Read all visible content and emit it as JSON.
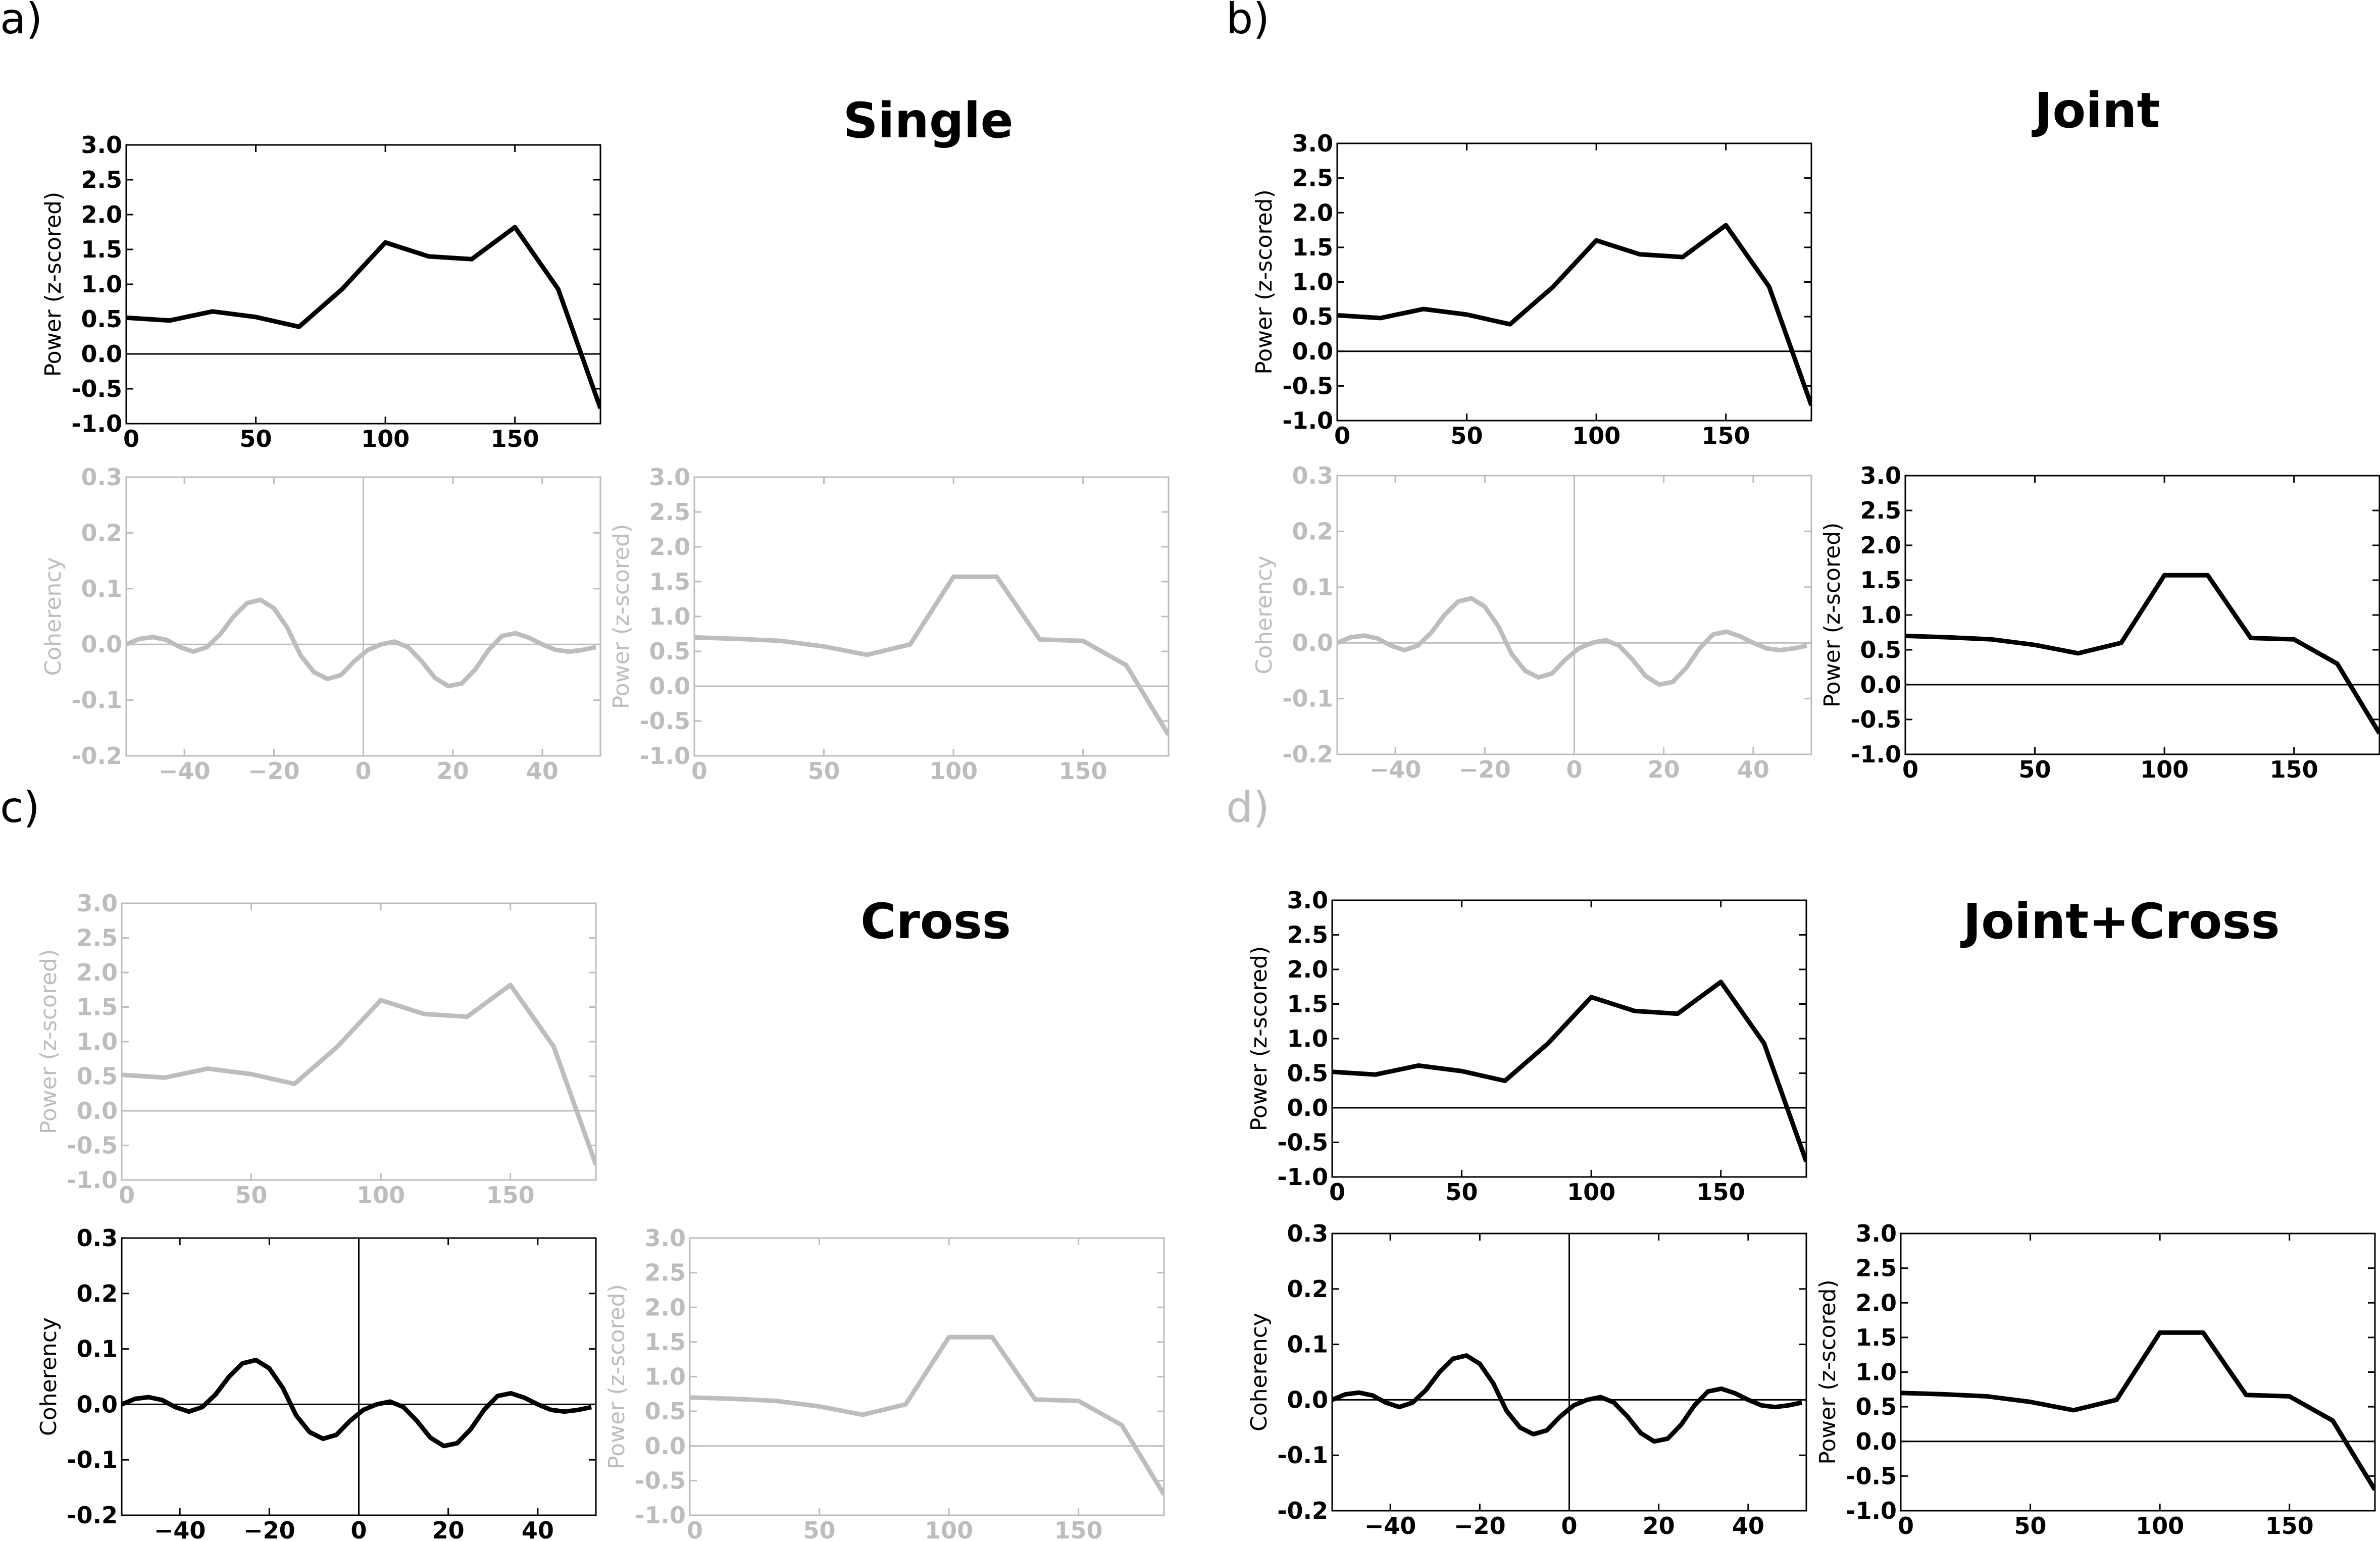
{
  "colors": {
    "dark": "#000000",
    "faded": "#bdbdbd"
  },
  "panels": [
    {
      "letter": "a)",
      "title": "Single",
      "letter_faded": false
    },
    {
      "letter": "b)",
      "title": "Joint",
      "letter_faded": false
    },
    {
      "letter": "c)",
      "title": "Cross",
      "letter_faded": false
    },
    {
      "letter": "d)",
      "title": "Joint+Cross",
      "letter_faded": true
    }
  ],
  "chart_data": [
    {
      "id": "a-top",
      "panel": "a)",
      "type": "line",
      "ylabel": "Power (z-scored)",
      "xlim": [
        0,
        183
      ],
      "ylim": [
        -1.0,
        3.0
      ],
      "xticks": [
        0,
        50,
        100,
        150
      ],
      "yticks": [
        -1.0,
        -0.5,
        0.0,
        0.5,
        1.0,
        1.5,
        2.0,
        2.5,
        3.0
      ],
      "faded": false,
      "zero_vline": false,
      "x": [
        0,
        16.7,
        33.3,
        50,
        66.7,
        83.3,
        100,
        116.7,
        133.3,
        150,
        166.7,
        183
      ],
      "y": [
        0.52,
        0.48,
        0.61,
        0.53,
        0.39,
        0.93,
        1.6,
        1.4,
        1.36,
        1.82,
        0.93,
        -0.78
      ]
    },
    {
      "id": "a-coh",
      "panel": "a)",
      "type": "line",
      "ylabel": "Coherency",
      "xlim": [
        -53,
        53
      ],
      "ylim": [
        -0.2,
        0.3
      ],
      "xticks": [
        -40,
        -20,
        0,
        20,
        40
      ],
      "yticks": [
        -0.2,
        -0.1,
        0.0,
        0.1,
        0.2,
        0.3
      ],
      "faded": true,
      "zero_vline": true,
      "x": [
        -53,
        -50,
        -47,
        -44,
        -41,
        -38,
        -35,
        -32,
        -29,
        -26,
        -23,
        -20,
        -17,
        -14,
        -11,
        -8,
        -5,
        -2,
        1,
        4,
        7,
        10,
        13,
        16,
        19,
        22,
        25,
        28,
        31,
        34,
        37,
        40,
        43,
        46,
        49,
        52
      ],
      "y": [
        0.0,
        0.01,
        0.013,
        0.008,
        -0.005,
        -0.013,
        -0.005,
        0.018,
        0.05,
        0.074,
        0.08,
        0.065,
        0.03,
        -0.02,
        -0.05,
        -0.062,
        -0.055,
        -0.03,
        -0.01,
        0.0,
        0.005,
        -0.005,
        -0.03,
        -0.06,
        -0.075,
        -0.07,
        -0.045,
        -0.01,
        0.015,
        0.02,
        0.012,
        0.0,
        -0.01,
        -0.013,
        -0.01,
        -0.005
      ]
    },
    {
      "id": "a-right",
      "panel": "a)",
      "type": "line",
      "ylabel": "Power (z-scored)",
      "xlim": [
        0,
        183
      ],
      "ylim": [
        -1.0,
        3.0
      ],
      "xticks": [
        0,
        50,
        100,
        150
      ],
      "yticks": [
        -1.0,
        -0.5,
        0.0,
        0.5,
        1.0,
        1.5,
        2.0,
        2.5,
        3.0
      ],
      "faded": true,
      "zero_vline": false,
      "x": [
        0,
        16.7,
        33.3,
        50,
        66.7,
        83.3,
        100,
        116.7,
        133.3,
        150,
        166.7,
        183
      ],
      "y": [
        0.7,
        0.68,
        0.65,
        0.57,
        0.45,
        0.6,
        1.57,
        1.57,
        0.67,
        0.65,
        0.3,
        -0.7
      ]
    },
    {
      "id": "b-top",
      "panel": "b)",
      "type": "line",
      "ylabel": "Power (z-scored)",
      "xlim": [
        0,
        183
      ],
      "ylim": [
        -1.0,
        3.0
      ],
      "xticks": [
        0,
        50,
        100,
        150
      ],
      "yticks": [
        -1.0,
        -0.5,
        0.0,
        0.5,
        1.0,
        1.5,
        2.0,
        2.5,
        3.0
      ],
      "faded": false,
      "zero_vline": false,
      "x": [
        0,
        16.7,
        33.3,
        50,
        66.7,
        83.3,
        100,
        116.7,
        133.3,
        150,
        166.7,
        183
      ],
      "y": [
        0.52,
        0.48,
        0.61,
        0.53,
        0.39,
        0.93,
        1.6,
        1.4,
        1.36,
        1.82,
        0.93,
        -0.78
      ]
    },
    {
      "id": "b-coh",
      "panel": "b)",
      "type": "line",
      "ylabel": "Coherency",
      "xlim": [
        -53,
        53
      ],
      "ylim": [
        -0.2,
        0.3
      ],
      "xticks": [
        -40,
        -20,
        0,
        20,
        40
      ],
      "yticks": [
        -0.2,
        -0.1,
        0.0,
        0.1,
        0.2,
        0.3
      ],
      "faded": true,
      "zero_vline": true,
      "x": [
        -53,
        -50,
        -47,
        -44,
        -41,
        -38,
        -35,
        -32,
        -29,
        -26,
        -23,
        -20,
        -17,
        -14,
        -11,
        -8,
        -5,
        -2,
        1,
        4,
        7,
        10,
        13,
        16,
        19,
        22,
        25,
        28,
        31,
        34,
        37,
        40,
        43,
        46,
        49,
        52
      ],
      "y": [
        0.0,
        0.01,
        0.013,
        0.008,
        -0.005,
        -0.013,
        -0.005,
        0.018,
        0.05,
        0.074,
        0.08,
        0.065,
        0.03,
        -0.02,
        -0.05,
        -0.062,
        -0.055,
        -0.03,
        -0.01,
        0.0,
        0.005,
        -0.005,
        -0.03,
        -0.06,
        -0.075,
        -0.07,
        -0.045,
        -0.01,
        0.015,
        0.02,
        0.012,
        0.0,
        -0.01,
        -0.013,
        -0.01,
        -0.005
      ]
    },
    {
      "id": "b-right",
      "panel": "b)",
      "type": "line",
      "ylabel": "Power (z-scored)",
      "xlim": [
        0,
        183
      ],
      "ylim": [
        -1.0,
        3.0
      ],
      "xticks": [
        0,
        50,
        100,
        150
      ],
      "yticks": [
        -1.0,
        -0.5,
        0.0,
        0.5,
        1.0,
        1.5,
        2.0,
        2.5,
        3.0
      ],
      "faded": false,
      "zero_vline": false,
      "x": [
        0,
        16.7,
        33.3,
        50,
        66.7,
        83.3,
        100,
        116.7,
        133.3,
        150,
        166.7,
        183
      ],
      "y": [
        0.7,
        0.68,
        0.65,
        0.57,
        0.45,
        0.6,
        1.57,
        1.57,
        0.67,
        0.65,
        0.3,
        -0.7
      ]
    },
    {
      "id": "c-top",
      "panel": "c)",
      "type": "line",
      "ylabel": "Power (z-scored)",
      "xlim": [
        0,
        183
      ],
      "ylim": [
        -1.0,
        3.0
      ],
      "xticks": [
        0,
        50,
        100,
        150
      ],
      "yticks": [
        -1.0,
        -0.5,
        0.0,
        0.5,
        1.0,
        1.5,
        2.0,
        2.5,
        3.0
      ],
      "faded": true,
      "zero_vline": false,
      "x": [
        0,
        16.7,
        33.3,
        50,
        66.7,
        83.3,
        100,
        116.7,
        133.3,
        150,
        166.7,
        183
      ],
      "y": [
        0.52,
        0.48,
        0.61,
        0.53,
        0.39,
        0.93,
        1.6,
        1.4,
        1.36,
        1.82,
        0.93,
        -0.78
      ]
    },
    {
      "id": "c-coh",
      "panel": "c)",
      "type": "line",
      "ylabel": "Coherency",
      "xlim": [
        -53,
        53
      ],
      "ylim": [
        -0.2,
        0.3
      ],
      "xticks": [
        -40,
        -20,
        0,
        20,
        40
      ],
      "yticks": [
        -0.2,
        -0.1,
        0.0,
        0.1,
        0.2,
        0.3
      ],
      "faded": false,
      "zero_vline": true,
      "x": [
        -53,
        -50,
        -47,
        -44,
        -41,
        -38,
        -35,
        -32,
        -29,
        -26,
        -23,
        -20,
        -17,
        -14,
        -11,
        -8,
        -5,
        -2,
        1,
        4,
        7,
        10,
        13,
        16,
        19,
        22,
        25,
        28,
        31,
        34,
        37,
        40,
        43,
        46,
        49,
        52
      ],
      "y": [
        0.0,
        0.01,
        0.013,
        0.008,
        -0.005,
        -0.013,
        -0.005,
        0.018,
        0.05,
        0.074,
        0.08,
        0.065,
        0.03,
        -0.02,
        -0.05,
        -0.062,
        -0.055,
        -0.03,
        -0.01,
        0.0,
        0.005,
        -0.005,
        -0.03,
        -0.06,
        -0.075,
        -0.07,
        -0.045,
        -0.01,
        0.015,
        0.02,
        0.012,
        0.0,
        -0.01,
        -0.013,
        -0.01,
        -0.005
      ]
    },
    {
      "id": "c-right",
      "panel": "c)",
      "type": "line",
      "ylabel": "Power (z-scored)",
      "xlim": [
        0,
        183
      ],
      "ylim": [
        -1.0,
        3.0
      ],
      "xticks": [
        0,
        50,
        100,
        150
      ],
      "yticks": [
        -1.0,
        -0.5,
        0.0,
        0.5,
        1.0,
        1.5,
        2.0,
        2.5,
        3.0
      ],
      "faded": true,
      "zero_vline": false,
      "x": [
        0,
        16.7,
        33.3,
        50,
        66.7,
        83.3,
        100,
        116.7,
        133.3,
        150,
        166.7,
        183
      ],
      "y": [
        0.7,
        0.68,
        0.65,
        0.57,
        0.45,
        0.6,
        1.57,
        1.57,
        0.67,
        0.65,
        0.3,
        -0.7
      ]
    },
    {
      "id": "d-top",
      "panel": "d)",
      "type": "line",
      "ylabel": "Power (z-scored)",
      "xlim": [
        0,
        183
      ],
      "ylim": [
        -1.0,
        3.0
      ],
      "xticks": [
        0,
        50,
        100,
        150
      ],
      "yticks": [
        -1.0,
        -0.5,
        0.0,
        0.5,
        1.0,
        1.5,
        2.0,
        2.5,
        3.0
      ],
      "faded": false,
      "zero_vline": false,
      "x": [
        0,
        16.7,
        33.3,
        50,
        66.7,
        83.3,
        100,
        116.7,
        133.3,
        150,
        166.7,
        183
      ],
      "y": [
        0.52,
        0.48,
        0.61,
        0.53,
        0.39,
        0.93,
        1.6,
        1.4,
        1.36,
        1.82,
        0.93,
        -0.78
      ]
    },
    {
      "id": "d-coh",
      "panel": "d)",
      "type": "line",
      "ylabel": "Coherency",
      "xlim": [
        -53,
        53
      ],
      "ylim": [
        -0.2,
        0.3
      ],
      "xticks": [
        -40,
        -20,
        0,
        20,
        40
      ],
      "yticks": [
        -0.2,
        -0.1,
        0.0,
        0.1,
        0.2,
        0.3
      ],
      "faded": false,
      "zero_vline": true,
      "x": [
        -53,
        -50,
        -47,
        -44,
        -41,
        -38,
        -35,
        -32,
        -29,
        -26,
        -23,
        -20,
        -17,
        -14,
        -11,
        -8,
        -5,
        -2,
        1,
        4,
        7,
        10,
        13,
        16,
        19,
        22,
        25,
        28,
        31,
        34,
        37,
        40,
        43,
        46,
        49,
        52
      ],
      "y": [
        0.0,
        0.01,
        0.013,
        0.008,
        -0.005,
        -0.013,
        -0.005,
        0.018,
        0.05,
        0.074,
        0.08,
        0.065,
        0.03,
        -0.02,
        -0.05,
        -0.062,
        -0.055,
        -0.03,
        -0.01,
        0.0,
        0.005,
        -0.005,
        -0.03,
        -0.06,
        -0.075,
        -0.07,
        -0.045,
        -0.01,
        0.015,
        0.02,
        0.012,
        0.0,
        -0.01,
        -0.013,
        -0.01,
        -0.005
      ]
    },
    {
      "id": "d-right",
      "panel": "d)",
      "type": "line",
      "ylabel": "Power (z-scored)",
      "xlim": [
        0,
        183
      ],
      "ylim": [
        -1.0,
        3.0
      ],
      "xticks": [
        0,
        50,
        100,
        150
      ],
      "yticks": [
        -1.0,
        -0.5,
        0.0,
        0.5,
        1.0,
        1.5,
        2.0,
        2.5,
        3.0
      ],
      "faded": false,
      "zero_vline": false,
      "x": [
        0,
        16.7,
        33.3,
        50,
        66.7,
        83.3,
        100,
        116.7,
        133.3,
        150,
        166.7,
        183
      ],
      "y": [
        0.7,
        0.68,
        0.65,
        0.57,
        0.45,
        0.6,
        1.57,
        1.57,
        0.67,
        0.65,
        0.3,
        -0.7
      ]
    }
  ]
}
